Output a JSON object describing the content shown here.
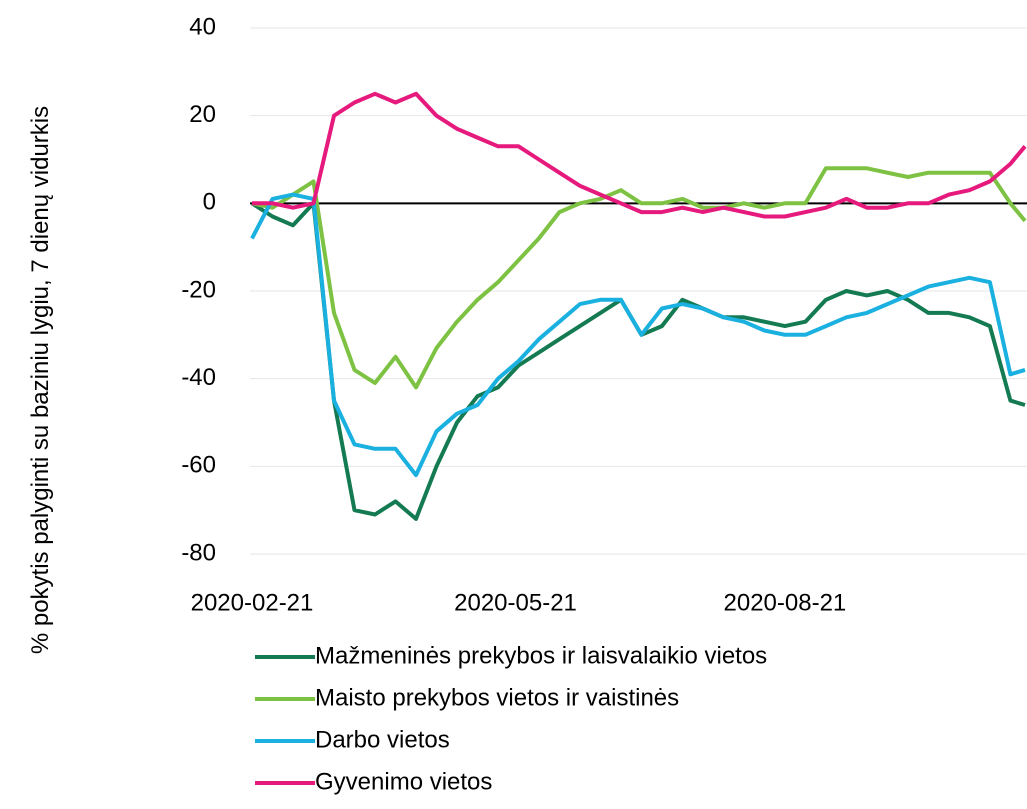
{
  "chart_data": {
    "type": "line",
    "y_label": "% pokytis palyginti su baziniu lygiu,  7 dienų vidurkis",
    "x": [
      "2020-02-21",
      "2020-02-28",
      "2020-03-06",
      "2020-03-13",
      "2020-03-20",
      "2020-03-27",
      "2020-04-03",
      "2020-04-10",
      "2020-04-17",
      "2020-04-24",
      "2020-05-01",
      "2020-05-08",
      "2020-05-15",
      "2020-05-22",
      "2020-05-29",
      "2020-06-05",
      "2020-06-12",
      "2020-06-19",
      "2020-06-26",
      "2020-07-03",
      "2020-07-10",
      "2020-07-17",
      "2020-07-24",
      "2020-07-31",
      "2020-08-07",
      "2020-08-14",
      "2020-08-21",
      "2020-08-28",
      "2020-09-04",
      "2020-09-11",
      "2020-09-18",
      "2020-09-25",
      "2020-10-02",
      "2020-10-09",
      "2020-10-16",
      "2020-10-23",
      "2020-10-30",
      "2020-11-06",
      "2020-11-11"
    ],
    "series": [
      {
        "name": "Mažmeninės prekybos ir laisvalaikio vietos",
        "color": "#137a52",
        "values": [
          0,
          -3,
          -5,
          0,
          -45,
          -70,
          -71,
          -68,
          -72,
          -60,
          -50,
          -44,
          -42,
          -37,
          -34,
          -31,
          -28,
          -25,
          -22,
          -30,
          -28,
          -22,
          -24,
          -26,
          -26,
          -27,
          -28,
          -27,
          -22,
          -20,
          -21,
          -20,
          -22,
          -25,
          -25,
          -26,
          -28,
          -45,
          -46
        ]
      },
      {
        "name": "Maisto prekybos vietos ir vaistinės",
        "color": "#7dc242",
        "values": [
          0,
          -1,
          2,
          5,
          -25,
          -38,
          -41,
          -35,
          -42,
          -33,
          -27,
          -22,
          -18,
          -13,
          -8,
          -2,
          0,
          1,
          3,
          0,
          0,
          1,
          -1,
          -1,
          0,
          -1,
          0,
          0,
          8,
          8,
          8,
          7,
          6,
          7,
          7,
          7,
          7,
          0,
          -4
        ]
      },
      {
        "name": "Darbo vietos",
        "color": "#1ab0e0",
        "values": [
          -8,
          1,
          2,
          1,
          -45,
          -55,
          -56,
          -56,
          -62,
          -52,
          -48,
          -46,
          -40,
          -36,
          -31,
          -27,
          -23,
          -22,
          -22,
          -30,
          -24,
          -23,
          -24,
          -26,
          -27,
          -29,
          -30,
          -30,
          -28,
          -26,
          -25,
          -23,
          -21,
          -19,
          -18,
          -17,
          -18,
          -39,
          -38
        ]
      },
      {
        "name": "Gyvenimo vietos",
        "color": "#e6197d",
        "values": [
          0,
          0,
          -1,
          0,
          20,
          23,
          25,
          23,
          25,
          20,
          17,
          15,
          13,
          13,
          10,
          7,
          4,
          2,
          0,
          -2,
          -2,
          -1,
          -2,
          -1,
          -2,
          -3,
          -3,
          -2,
          -1,
          1,
          -1,
          -1,
          0,
          0,
          2,
          3,
          5,
          9,
          13
        ]
      }
    ],
    "xlim": [
      "2020-02-21",
      "2020-11-11"
    ],
    "xticks": [
      "2020-02-21",
      "2020-05-21",
      "2020-08-21"
    ],
    "ylim": [
      -80,
      40
    ],
    "yticks": [
      -80,
      -60,
      -40,
      -20,
      0,
      20,
      40
    ],
    "grid": true
  }
}
